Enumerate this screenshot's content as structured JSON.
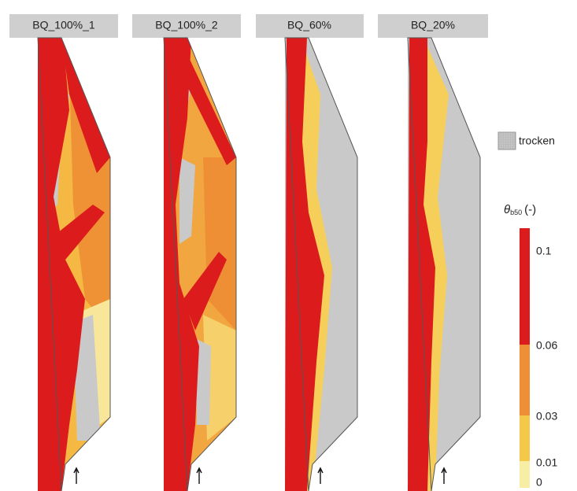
{
  "panels": [
    {
      "title": "BQ_100%_1"
    },
    {
      "title": "BQ_100%_2"
    },
    {
      "title": "BQ_60%"
    },
    {
      "title": "BQ_20%"
    }
  ],
  "legend": {
    "dry_label": "trocken",
    "title": {
      "symbol": "θ",
      "subscript": "b50",
      "unit": "(-)"
    },
    "scale_labels": [
      "0.1",
      "0.06",
      "0.03",
      "0.01",
      "0"
    ]
  }
}
